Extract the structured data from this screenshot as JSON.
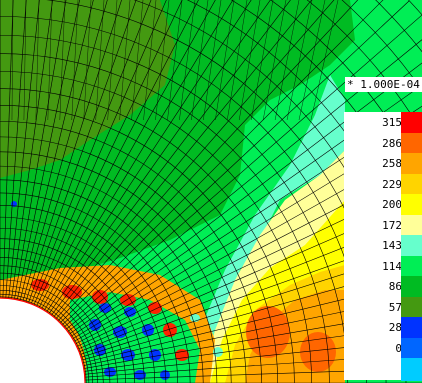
{
  "scale_factor_label": "* 1.000E-04",
  "legend": {
    "levels": [
      {
        "label": "315",
        "color": "#ff0000"
      },
      {
        "label": "286",
        "color": "#ff6600"
      },
      {
        "label": "258",
        "color": "#ffa500"
      },
      {
        "label": "229",
        "color": "#ffd400"
      },
      {
        "label": "200",
        "color": "#ffff00"
      },
      {
        "label": "172",
        "color": "#ffff99"
      },
      {
        "label": "143",
        "color": "#66ffcc"
      },
      {
        "label": "114",
        "color": "#00ee55"
      },
      {
        "label": "86",
        "color": "#00bb22"
      },
      {
        "label": "57",
        "color": "#449911"
      },
      {
        "label": "28",
        "color": "#0033ff"
      },
      {
        "label": "0",
        "color": "#0066ff"
      },
      {
        "label": "",
        "color": "#00ccff"
      }
    ]
  },
  "colors": {
    "hole_boundary": "#ff0000",
    "mesh_lines": "#000000",
    "background": "#ffffff"
  }
}
